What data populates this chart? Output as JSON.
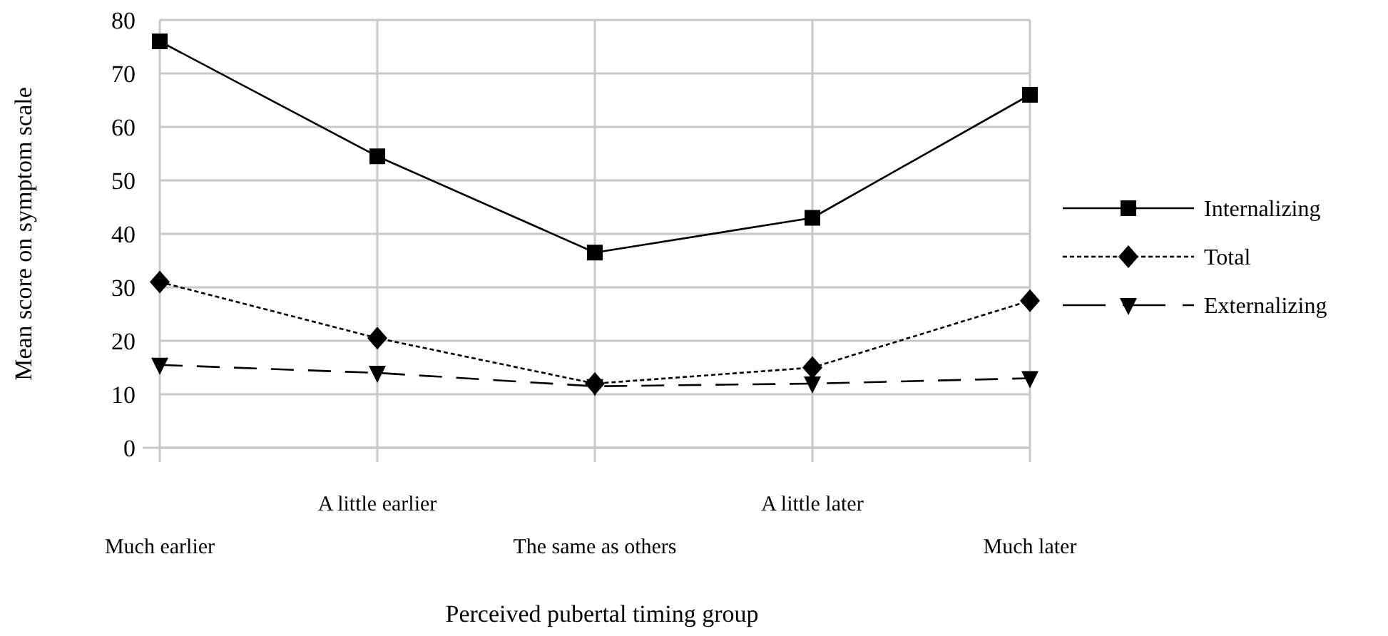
{
  "chart_data": {
    "type": "line",
    "xlabel": "Perceived pubertal timing group",
    "ylabel": "Mean score on symptom scale",
    "categories": [
      "Much earlier",
      "A little earlier",
      "The same as others",
      "A little later",
      "Much later"
    ],
    "ylim": [
      0,
      80
    ],
    "yticks": [
      0,
      10,
      20,
      30,
      40,
      50,
      60,
      70,
      80
    ],
    "grid": true,
    "legend": "right",
    "series": [
      {
        "name": "Internalizing",
        "color": "#000000",
        "values": [
          76,
          54.5,
          36.5,
          43,
          66
        ],
        "marker": "square",
        "line_style": "solid"
      },
      {
        "name": "Total",
        "color": "#000000",
        "values": [
          31,
          20.5,
          12,
          15,
          27.5
        ],
        "marker": "diamond",
        "line_style": "dotted"
      },
      {
        "name": "Externalizing",
        "color": "#000000",
        "values": [
          15.5,
          14,
          11.5,
          12,
          13
        ],
        "marker": "triangle",
        "line_style": "dashed"
      }
    ]
  }
}
